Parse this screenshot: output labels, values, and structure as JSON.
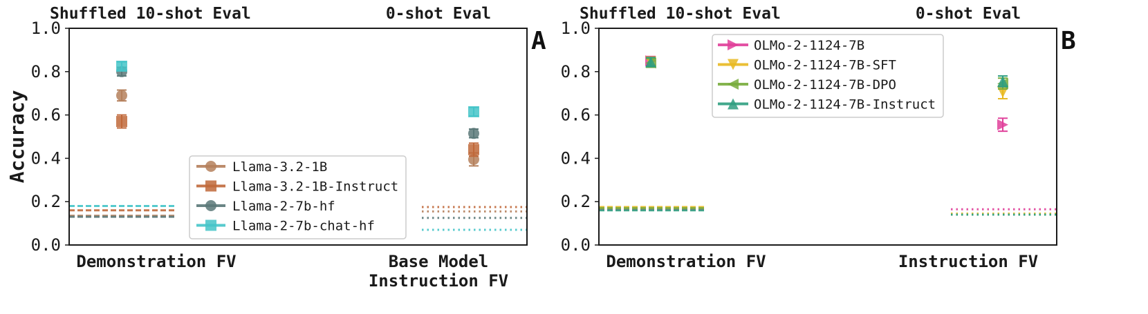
{
  "chart_data": [
    {
      "type": "scatter",
      "panel_label": "A",
      "ylabel": "Accuracy",
      "ylim": [
        0,
        1
      ],
      "yticks": [
        "0.0",
        "0.2",
        "0.4",
        "0.6",
        "0.8",
        "1.0"
      ],
      "section_titles": [
        "Shuffled 10-shot Eval",
        "0-shot Eval"
      ],
      "categories": [
        [
          "Demonstration FV"
        ],
        [
          "Base Model",
          "Instruction FV"
        ]
      ],
      "legend_position": "lower-center",
      "series": [
        {
          "name": "Llama-3.2-1B",
          "color": "#b5805c",
          "marker": "circle",
          "values": [
            0.69,
            0.395
          ],
          "errors": [
            0.025,
            0.03
          ],
          "baselines": [
            {
              "value": 0.135,
              "style": "dashed"
            },
            {
              "value": 0.155,
              "style": "dotted"
            }
          ]
        },
        {
          "name": "Llama-3.2-1B-Instruct",
          "color": "#c0683a",
          "marker": "square",
          "values": [
            0.57,
            0.44
          ],
          "errors": [
            0.03,
            0.03
          ],
          "baselines": [
            {
              "value": 0.16,
              "style": "dashed"
            },
            {
              "value": 0.175,
              "style": "dotted"
            }
          ]
        },
        {
          "name": "Llama-2-7b-hf",
          "color": "#5a7878",
          "marker": "circle",
          "values": [
            0.8,
            0.515
          ],
          "errors": [
            0.02,
            0.02
          ],
          "baselines": [
            {
              "value": 0.13,
              "style": "dashed"
            },
            {
              "value": 0.125,
              "style": "dotted"
            }
          ]
        },
        {
          "name": "Llama-2-7b-chat-hf",
          "color": "#44c4c8",
          "marker": "square",
          "values": [
            0.825,
            0.615
          ],
          "errors": [
            0.02,
            0.02
          ],
          "baselines": [
            {
              "value": 0.18,
              "style": "dashed"
            },
            {
              "value": 0.07,
              "style": "dotted"
            }
          ]
        }
      ]
    },
    {
      "type": "scatter",
      "panel_label": "B",
      "ylabel": "",
      "ylim": [
        0,
        1
      ],
      "yticks": [
        "0.0",
        "0.2",
        "0.4",
        "0.6",
        "0.8",
        "1.0"
      ],
      "section_titles": [
        "Shuffled 10-shot Eval",
        "0-shot Eval"
      ],
      "categories": [
        [
          "Demonstration FV"
        ],
        [
          "Instruction FV"
        ]
      ],
      "legend_position": "top-center",
      "series": [
        {
          "name": "OLMo-2-1124-7B",
          "color": "#e0409a",
          "marker": "triangle-right",
          "values": [
            0.85,
            0.555
          ],
          "errors": [
            0.02,
            0.03
          ],
          "baselines": [
            {
              "value": 0.165,
              "style": "dashed"
            },
            {
              "value": 0.165,
              "style": "dotted"
            }
          ]
        },
        {
          "name": "OLMo-2-1124-7B-SFT",
          "color": "#e8b820",
          "marker": "triangle-down",
          "values": [
            0.845,
            0.705
          ],
          "errors": [
            0.02,
            0.03
          ],
          "baselines": [
            {
              "value": 0.175,
              "style": "dashed"
            },
            {
              "value": 0.145,
              "style": "dotted"
            }
          ]
        },
        {
          "name": "OLMo-2-1124-7B-DPO",
          "color": "#78ac3c",
          "marker": "triangle-left",
          "values": [
            0.84,
            0.745
          ],
          "errors": [
            0.02,
            0.025
          ],
          "baselines": [
            {
              "value": 0.17,
              "style": "dashed"
            },
            {
              "value": 0.14,
              "style": "dotted"
            }
          ]
        },
        {
          "name": "OLMo-2-1124-7B-Instruct",
          "color": "#2e9e80",
          "marker": "triangle-up",
          "values": [
            0.845,
            0.755
          ],
          "errors": [
            0.02,
            0.025
          ],
          "baselines": [
            {
              "value": 0.16,
              "style": "dashed"
            },
            {
              "value": 0.14,
              "style": "dotted"
            }
          ]
        }
      ]
    }
  ]
}
